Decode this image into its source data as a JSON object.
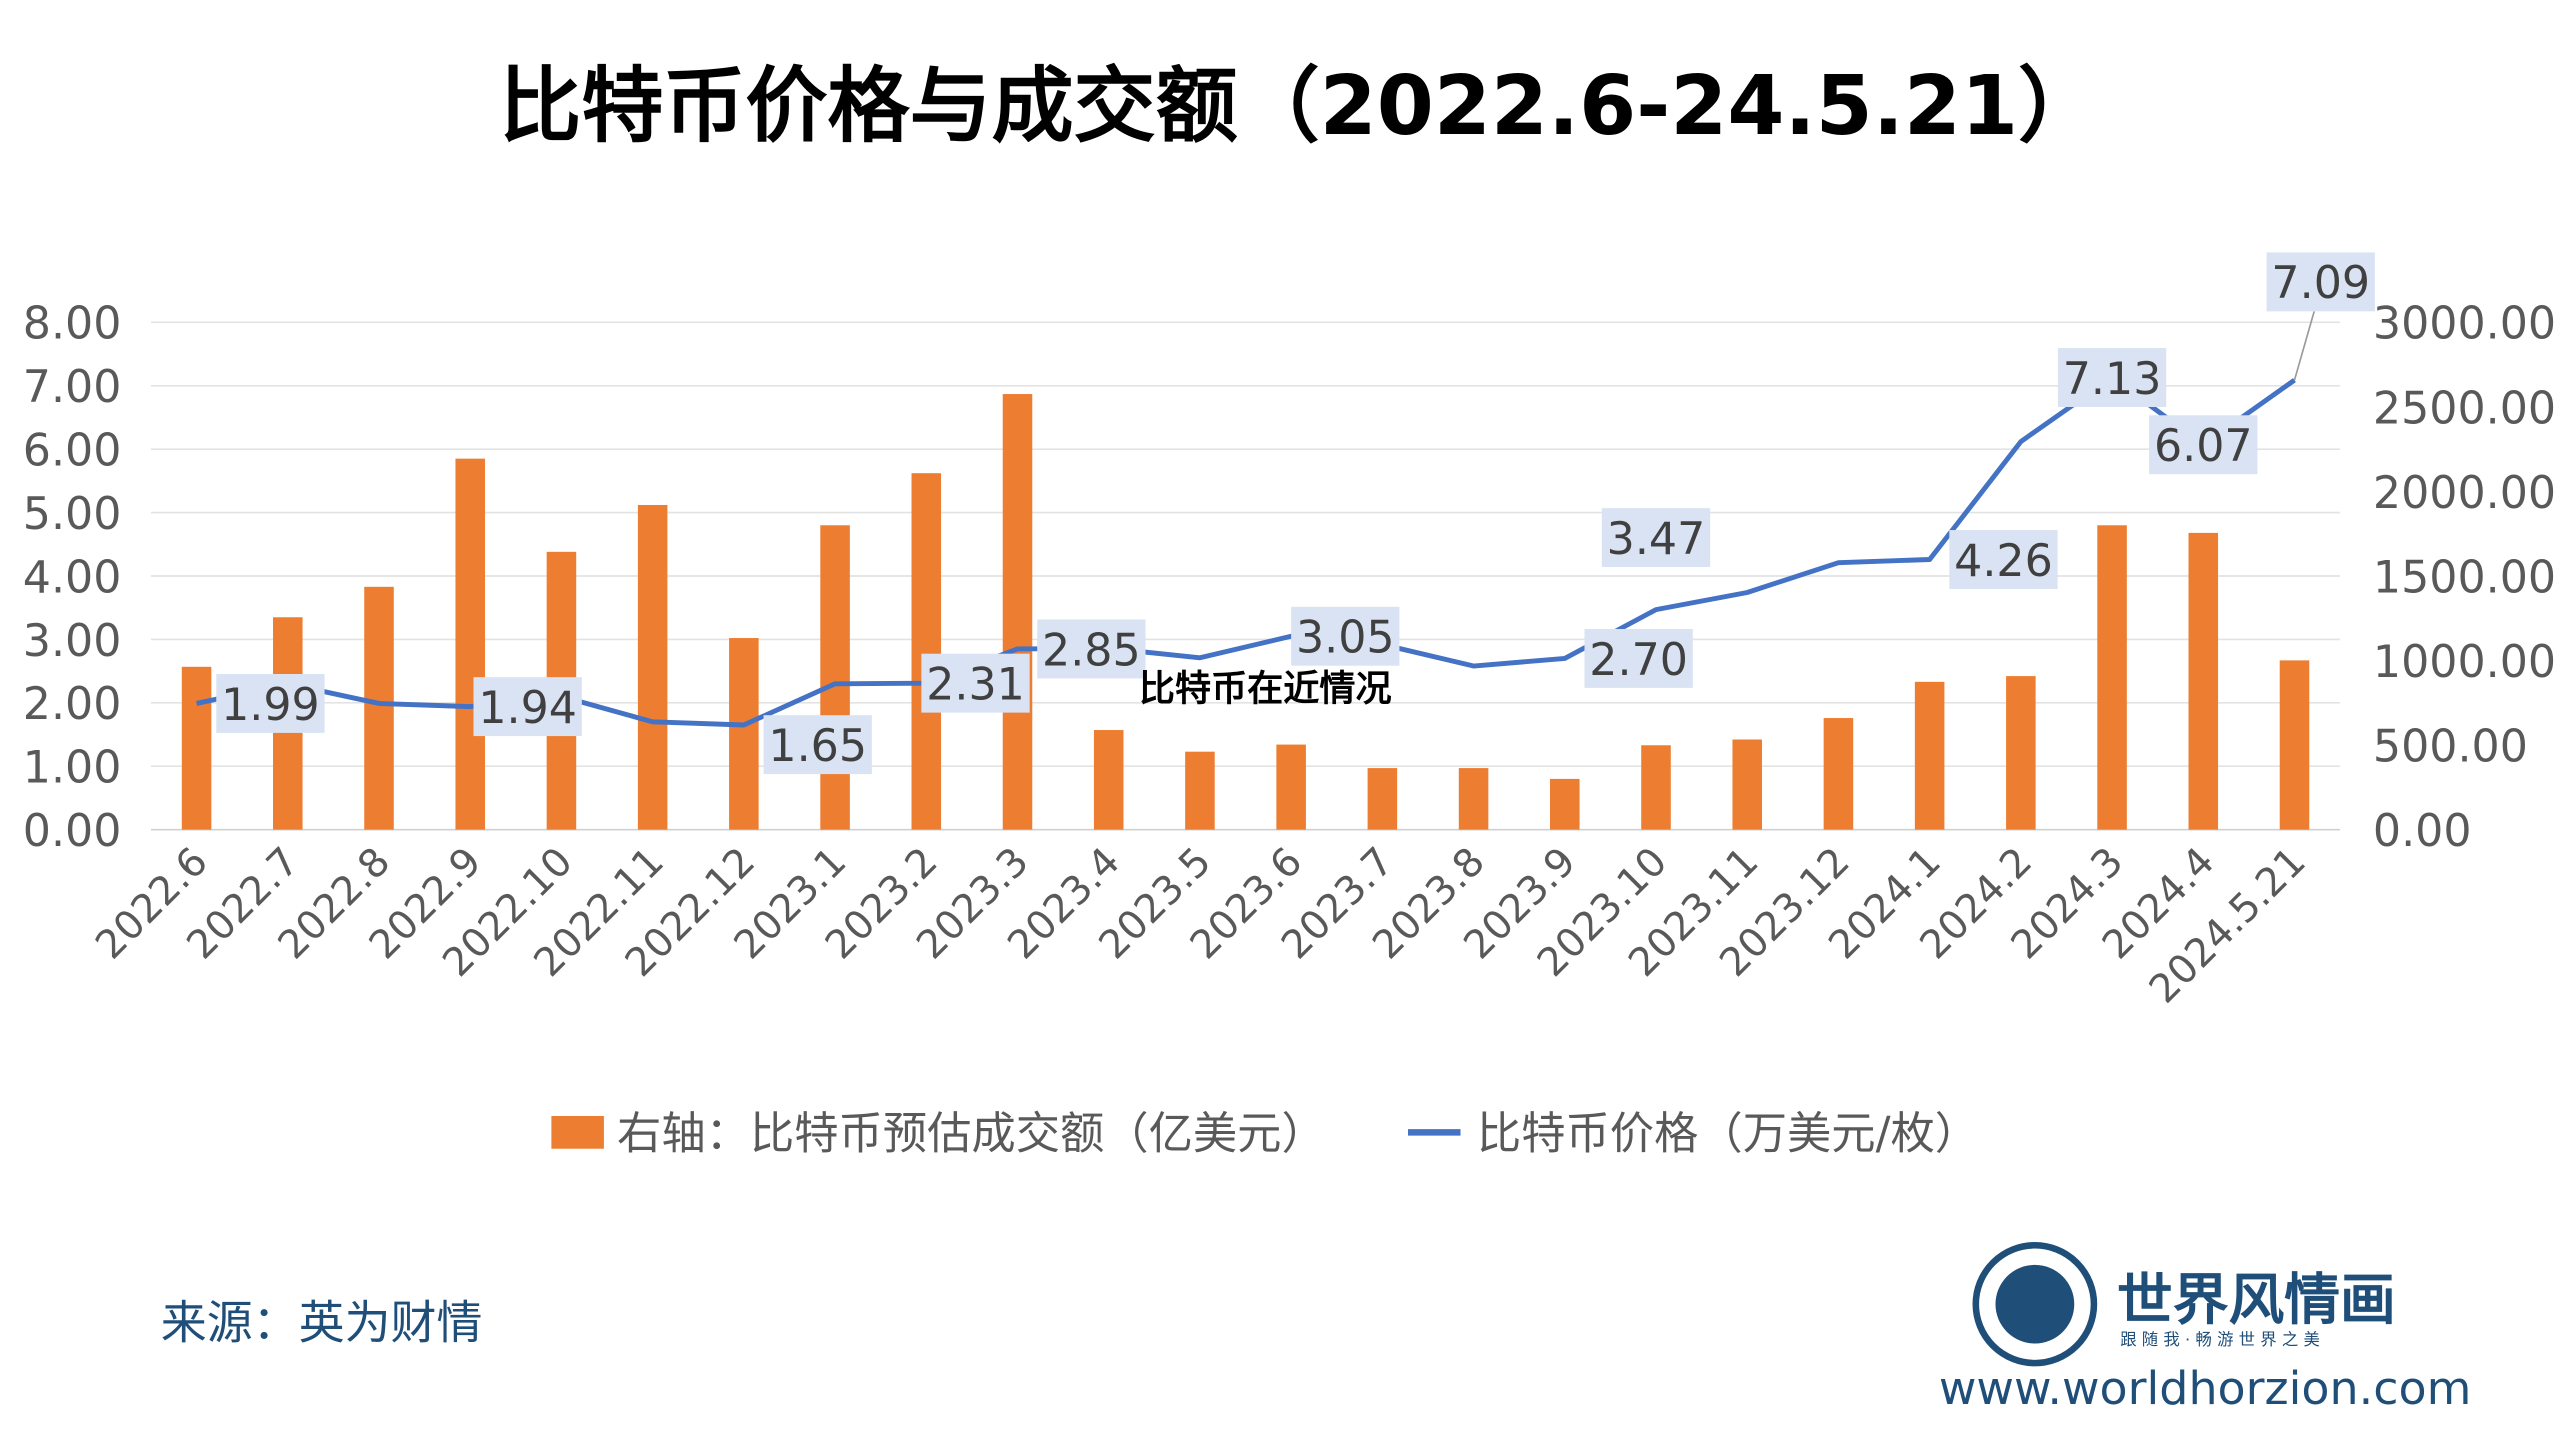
{
  "chart_data": {
    "type": "bar+line",
    "title": "比特币价格与成交额（2022.6-24.5.21）",
    "overlay_text": "比特币在近情况",
    "categories": [
      "2022.6",
      "2022.7",
      "2022.8",
      "2022.9",
      "2022.10",
      "2022.11",
      "2022.12",
      "2023.1",
      "2023.2",
      "2023.3",
      "2023.4",
      "2023.5",
      "2023.6",
      "2023.7",
      "2023.8",
      "2023.9",
      "2023.10",
      "2023.11",
      "2023.12",
      "2024.1",
      "2024.2",
      "2024.3",
      "2024.4",
      "2024.5.21"
    ],
    "left_axis": {
      "range": [
        0,
        8
      ],
      "ticks": [
        "0.00",
        "1.00",
        "2.00",
        "3.00",
        "4.00",
        "5.00",
        "6.00",
        "7.00",
        "8.00"
      ]
    },
    "right_axis": {
      "range": [
        0,
        3000
      ],
      "ticks": [
        "0.00",
        "500.00",
        "1000.00",
        "1500.00",
        "2000.00",
        "2500.00",
        "3000.00"
      ]
    },
    "grid": true,
    "legend_placement": "bottom",
    "series": [
      {
        "name": "右轴：比特币预估成交额（亿美元）",
        "type": "bar",
        "axis": "right",
        "color": "#ED7D31",
        "values": [
          963,
          1256,
          1436,
          2194,
          1643,
          1920,
          1133,
          1800,
          2108,
          2576,
          589,
          461,
          503,
          364,
          364,
          300,
          499,
          533,
          660,
          874,
          908,
          1800,
          1755,
          1001
        ]
      },
      {
        "name": "比特币价格（万美元/枚）",
        "type": "line",
        "axis": "left",
        "color": "#4472C4",
        "values": [
          1.99,
          2.3,
          1.99,
          1.94,
          2.1,
          1.7,
          1.65,
          2.3,
          2.31,
          2.85,
          2.86,
          2.71,
          3.05,
          2.92,
          2.58,
          2.7,
          3.47,
          3.74,
          4.21,
          4.26,
          6.12,
          7.13,
          6.07,
          7.09
        ],
        "data_labels": [
          {
            "index": 0,
            "text": "1.99"
          },
          {
            "index": 3,
            "text": "1.94"
          },
          {
            "index": 6,
            "text": "1.65"
          },
          {
            "index": 8,
            "text": "2.31"
          },
          {
            "index": 9,
            "text": "2.85"
          },
          {
            "index": 12,
            "text": "3.05"
          },
          {
            "index": 15,
            "text": "2.70"
          },
          {
            "index": 16,
            "text": "3.47"
          },
          {
            "index": 19,
            "text": "4.26"
          },
          {
            "index": 21,
            "text": "7.13"
          },
          {
            "index": 22,
            "text": "6.07"
          },
          {
            "index": 23,
            "text": "7.09"
          }
        ]
      }
    ]
  },
  "footer": {
    "source": "来源：英为财情",
    "logo_name": "世界风情画",
    "logo_slogan": "跟 随 我 · 畅 游 世 界 之 美",
    "website": "www.worldhorzion.com"
  }
}
